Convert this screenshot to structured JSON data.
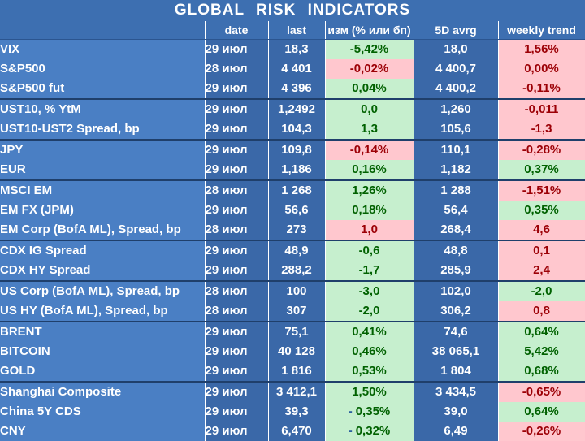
{
  "title": "GLOBAL  RISK  INDICATORS",
  "headers": {
    "name": "",
    "date": "date",
    "last": "last",
    "change": "изм (% или бп)",
    "avg5d": "5D avrg",
    "trend": "weekly trend"
  },
  "colors": {
    "header_bg": "#3d6fb1",
    "name_bg": "#4a7fc4",
    "value_bg": "#3a68a8",
    "positive_bg": "#c6efce",
    "positive_fg": "#006100",
    "negative_bg": "#ffc7ce",
    "negative_fg": "#9c0006"
  },
  "rows": [
    {
      "name": "VIX",
      "date": "29 июл",
      "last": "18,3",
      "change": "-5,42%",
      "change_sign": "pos",
      "avg5d": "18,0",
      "trend": "1,56%",
      "trend_sign": "neg",
      "group_start": true
    },
    {
      "name": "S&P500",
      "date": "28 июл",
      "last": "4 401",
      "change": "-0,02%",
      "change_sign": "neg",
      "avg5d": "4 400,7",
      "trend": "0,00%",
      "trend_sign": "neg"
    },
    {
      "name": "S&P500 fut",
      "date": "29 июл",
      "last": "4 396",
      "change": "0,04%",
      "change_sign": "pos",
      "avg5d": "4 400,2",
      "trend": "-0,11%",
      "trend_sign": "neg"
    },
    {
      "name": "UST10, % YtM",
      "date": "29 июл",
      "last": "1,2492",
      "change": "0,0",
      "change_sign": "pos",
      "avg5d": "1,260",
      "trend": "-0,011",
      "trend_sign": "neg",
      "group_start": true
    },
    {
      "name": "UST10-UST2 Spread, bp",
      "date": "29 июл",
      "last": "104,3",
      "change": "1,3",
      "change_sign": "pos",
      "avg5d": "105,6",
      "trend": "-1,3",
      "trend_sign": "neg"
    },
    {
      "name": "JPY",
      "date": "29 июл",
      "last": "109,8",
      "change": "-0,14%",
      "change_sign": "neg",
      "avg5d": "110,1",
      "trend": "-0,28%",
      "trend_sign": "neg",
      "group_start": true
    },
    {
      "name": "EUR",
      "date": "29 июл",
      "last": "1,186",
      "change": "0,16%",
      "change_sign": "pos",
      "avg5d": "1,182",
      "trend": "0,37%",
      "trend_sign": "pos"
    },
    {
      "name": "MSCI EM",
      "date": "28 июл",
      "last": "1 268",
      "change": "1,26%",
      "change_sign": "pos",
      "avg5d": "1 288",
      "trend": "-1,51%",
      "trend_sign": "neg",
      "group_start": true
    },
    {
      "name": "EM FX (JPM)",
      "date": "29 июл",
      "last": "56,6",
      "change": "0,18%",
      "change_sign": "pos",
      "avg5d": "56,4",
      "trend": "0,35%",
      "trend_sign": "pos"
    },
    {
      "name": "EM Corp (BofA ML), Spread, bp",
      "date": "28 июл",
      "last": "273",
      "change": "1,0",
      "change_sign": "neg",
      "avg5d": "268,4",
      "trend": "4,6",
      "trend_sign": "neg"
    },
    {
      "name": "CDX IG Spread",
      "date": "29 июл",
      "last": "48,9",
      "change": "-0,6",
      "change_sign": "pos",
      "avg5d": "48,8",
      "trend": "0,1",
      "trend_sign": "neg",
      "group_start": true
    },
    {
      "name": "CDX HY Spread",
      "date": "29 июл",
      "last": "288,2",
      "change": "-1,7",
      "change_sign": "pos",
      "avg5d": "285,9",
      "trend": "2,4",
      "trend_sign": "neg"
    },
    {
      "name": "US Corp (BofA ML), Spread, bp",
      "date": "28 июл",
      "last": "100",
      "change": "-3,0",
      "change_sign": "pos",
      "avg5d": "102,0",
      "trend": "-2,0",
      "trend_sign": "pos",
      "group_start": true
    },
    {
      "name": "US HY (BofA ML), Spread, bp",
      "date": "28 июл",
      "last": "307",
      "change": "-2,0",
      "change_sign": "pos",
      "avg5d": "306,2",
      "trend": "0,8",
      "trend_sign": "neg"
    },
    {
      "name": "BRENT",
      "date": "29 июл",
      "last": "75,1",
      "change": "0,41%",
      "change_sign": "pos",
      "avg5d": "74,6",
      "trend": "0,64%",
      "trend_sign": "pos",
      "group_start": true
    },
    {
      "name": "BITCOIN",
      "date": "29 июл",
      "last": "40 128",
      "change": "0,46%",
      "change_sign": "pos",
      "avg5d": "38 065,1",
      "trend": "5,42%",
      "trend_sign": "pos"
    },
    {
      "name": "GOLD",
      "date": "29 июл",
      "last": "1 816",
      "change": "0,53%",
      "change_sign": "pos",
      "avg5d": "1 804",
      "trend": "0,68%",
      "trend_sign": "pos"
    },
    {
      "name": "Shanghai Composite",
      "date": "29 июл",
      "last": "3 412,1",
      "change": "1,50%",
      "change_sign": "pos",
      "avg5d": "3 434,5",
      "trend": "-0,65%",
      "trend_sign": "neg",
      "group_start": true
    },
    {
      "name": "China 5Y CDS",
      "date": "29 июл",
      "last": "39,3",
      "change": "0,35%",
      "change_prefix": "-",
      "change_sign": "pos",
      "avg5d": "39,0",
      "trend": "0,64%",
      "trend_sign": "pos"
    },
    {
      "name": "CNY",
      "date": "29 июл",
      "last": "6,470",
      "change": "0,32%",
      "change_prefix": "-",
      "change_sign": "pos",
      "avg5d": "6,49",
      "trend": "-0,26%",
      "trend_sign": "neg"
    }
  ]
}
